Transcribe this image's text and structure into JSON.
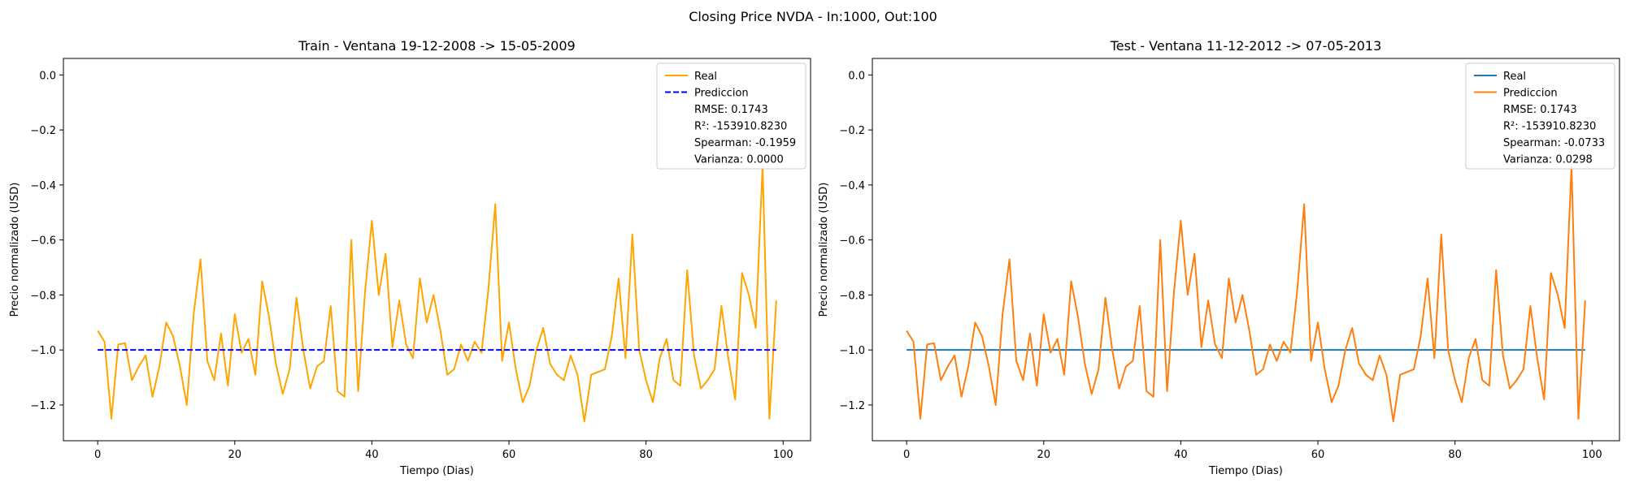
{
  "figure": {
    "suptitle": "Closing Price NVDA - In:1000, Out:100"
  },
  "chart_data": [
    {
      "type": "line",
      "title": "Train - Ventana 19-12-2008 -> 15-05-2009",
      "xlabel": "Tiempo (Dias)",
      "ylabel": "Precio normalizado (USD)",
      "xlim": [
        -5,
        104
      ],
      "ylim": [
        -1.33,
        0.06
      ],
      "xticks": [
        0,
        20,
        40,
        60,
        80,
        100
      ],
      "yticks": [
        0.0,
        -0.2,
        -0.4,
        -0.6,
        -0.8,
        -1.0,
        -1.2
      ],
      "legend_position": "top-right",
      "series": [
        {
          "name": "Real",
          "color": "#ffa500",
          "dash": "solid",
          "values": [
            -0.93,
            -0.97,
            -1.25,
            -0.98,
            -0.975,
            -1.11,
            -1.06,
            -1.02,
            -1.17,
            -1.06,
            -0.9,
            -0.95,
            -1.06,
            -1.2,
            -0.87,
            -0.67,
            -1.04,
            -1.11,
            -0.94,
            -1.13,
            -0.87,
            -1.01,
            -0.96,
            -1.09,
            -0.75,
            -0.88,
            -1.05,
            -1.16,
            -1.07,
            -0.81,
            -1.0,
            -1.14,
            -1.06,
            -1.04,
            -0.84,
            -1.15,
            -1.17,
            -0.6,
            -1.15,
            -0.79,
            -0.53,
            -0.8,
            -0.65,
            -0.99,
            -0.82,
            -0.98,
            -1.03,
            -0.74,
            -0.9,
            -0.8,
            -0.93,
            -1.09,
            -1.07,
            -0.98,
            -1.04,
            -0.97,
            -1.01,
            -0.78,
            -0.47,
            -1.04,
            -0.9,
            -1.07,
            -1.19,
            -1.13,
            -1.0,
            -0.92,
            -1.05,
            -1.09,
            -1.11,
            -1.02,
            -1.09,
            -1.26,
            -1.09,
            -1.08,
            -1.07,
            -0.95,
            -0.74,
            -1.03,
            -0.58,
            -1.0,
            -1.11,
            -1.19,
            -1.03,
            -0.96,
            -1.11,
            -1.13,
            -0.71,
            -1.02,
            -1.14,
            -1.11,
            -1.07,
            -0.84,
            -1.03,
            -1.18,
            -0.72,
            -0.8,
            -0.92,
            -0.33,
            -1.25,
            -0.82
          ]
        },
        {
          "name": "Prediccion",
          "color": "#0000ff",
          "dash": "dashed",
          "x_range": [
            0,
            99
          ],
          "values": [
            -1.0,
            -1.0
          ]
        }
      ],
      "legend_stats": [
        "RMSE: 0.1743",
        "R²: -153910.8230",
        "Spearman: -0.1959",
        "Varianza: 0.0000"
      ]
    },
    {
      "type": "line",
      "title": "Test - Ventana 11-12-2012 -> 07-05-2013",
      "xlabel": "Tiempo (Dias)",
      "ylabel": "Precio normalizado (USD)",
      "xlim": [
        -5,
        104
      ],
      "ylim": [
        -1.33,
        0.06
      ],
      "xticks": [
        0,
        20,
        40,
        60,
        80,
        100
      ],
      "yticks": [
        0.0,
        -0.2,
        -0.4,
        -0.6,
        -0.8,
        -1.0,
        -1.2
      ],
      "legend_position": "top-right",
      "series": [
        {
          "name": "Real",
          "color": "#1f77b4",
          "dash": "solid",
          "x_range": [
            0,
            99
          ],
          "values": [
            -1.0,
            -1.0
          ]
        },
        {
          "name": "Prediccion",
          "color": "#ff7f0e",
          "dash": "solid",
          "values": [
            -0.93,
            -0.97,
            -1.25,
            -0.98,
            -0.975,
            -1.11,
            -1.06,
            -1.02,
            -1.17,
            -1.06,
            -0.9,
            -0.95,
            -1.06,
            -1.2,
            -0.87,
            -0.67,
            -1.04,
            -1.11,
            -0.94,
            -1.13,
            -0.87,
            -1.01,
            -0.96,
            -1.09,
            -0.75,
            -0.88,
            -1.05,
            -1.16,
            -1.07,
            -0.81,
            -1.0,
            -1.14,
            -1.06,
            -1.04,
            -0.84,
            -1.15,
            -1.17,
            -0.6,
            -1.15,
            -0.79,
            -0.53,
            -0.8,
            -0.65,
            -0.99,
            -0.82,
            -0.98,
            -1.03,
            -0.74,
            -0.9,
            -0.8,
            -0.93,
            -1.09,
            -1.07,
            -0.98,
            -1.04,
            -0.97,
            -1.01,
            -0.78,
            -0.47,
            -1.04,
            -0.9,
            -1.07,
            -1.19,
            -1.13,
            -1.0,
            -0.92,
            -1.05,
            -1.09,
            -1.11,
            -1.02,
            -1.09,
            -1.26,
            -1.09,
            -1.08,
            -1.07,
            -0.95,
            -0.74,
            -1.03,
            -0.58,
            -1.0,
            -1.11,
            -1.19,
            -1.03,
            -0.96,
            -1.11,
            -1.13,
            -0.71,
            -1.02,
            -1.14,
            -1.11,
            -1.07,
            -0.84,
            -1.03,
            -1.18,
            -0.72,
            -0.8,
            -0.92,
            -0.33,
            -1.25,
            -0.82
          ]
        }
      ],
      "legend_stats": [
        "RMSE: 0.1743",
        "R²: -153910.8230",
        "Spearman: -0.0733",
        "Varianza: 0.0298"
      ]
    }
  ]
}
